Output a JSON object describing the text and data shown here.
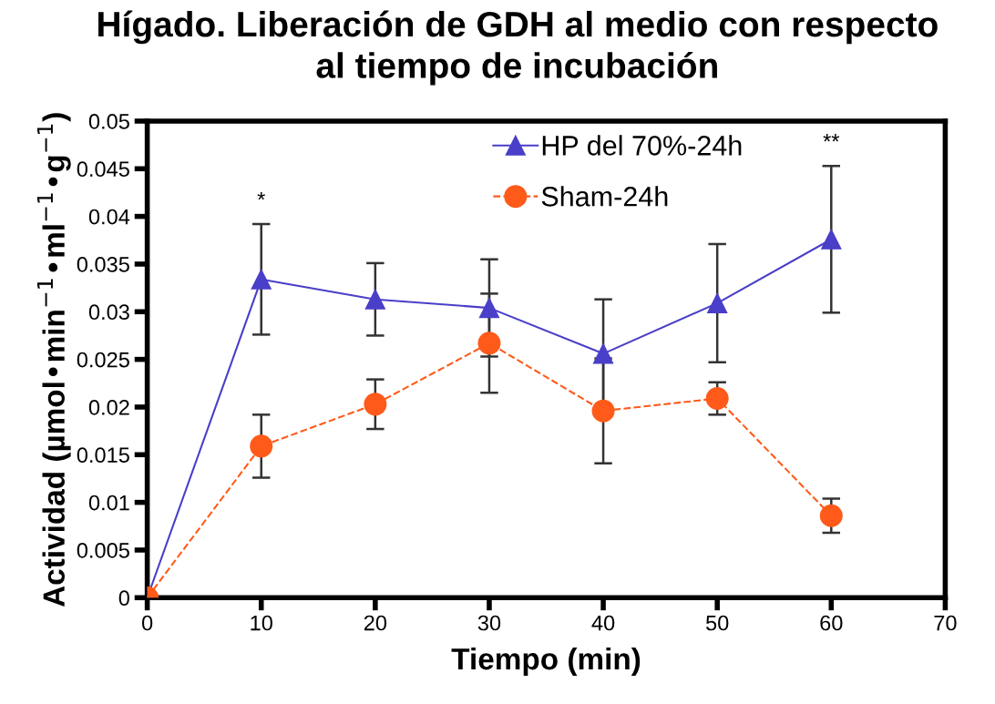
{
  "chart_data": {
    "type": "line",
    "title": "Hígado. Liberación de GDH al medio con respecto\nal tiempo de incubación",
    "xlabel": "Tiempo (min)",
    "ylabel": "Actividad (µmol•min$^{−1}$•ml$^{−1}$•g$^{−1}$)",
    "x": [
      0,
      10,
      20,
      30,
      40,
      50,
      60
    ],
    "series": [
      {
        "name": "HP del 70%-24h",
        "color": "#4a3fc8",
        "marker": "triangle",
        "line_style": "solid",
        "values": [
          0,
          0.0334,
          0.0313,
          0.0304,
          0.0256,
          0.0309,
          0.0376
        ],
        "errors": [
          null,
          0.0058,
          0.0038,
          0.0051,
          0.0057,
          0.0062,
          0.0077
        ]
      },
      {
        "name": "Sham-24h",
        "color": "#ff5a1a",
        "marker": "circle",
        "line_style": "dashed",
        "values": [
          0,
          0.0159,
          0.0203,
          0.0267,
          0.0196,
          0.0209,
          0.0086
        ],
        "errors": [
          null,
          0.0033,
          0.0026,
          0.0052,
          0.0055,
          0.0017,
          0.0018
        ]
      }
    ],
    "annotations": [
      {
        "text": "*",
        "x": 10,
        "y": 0.0392
      },
      {
        "text": "**",
        "x": 60,
        "y": 0.0453
      }
    ],
    "xlim": [
      0,
      70
    ],
    "xticks": [
      0,
      10,
      20,
      30,
      40,
      50,
      60,
      70
    ],
    "ylim": [
      0,
      0.05
    ],
    "yticks": [
      0,
      0.005,
      0.01,
      0.015,
      0.02,
      0.025,
      0.03,
      0.035,
      0.04,
      0.045,
      0.05
    ],
    "grid": false,
    "legend": "top"
  }
}
